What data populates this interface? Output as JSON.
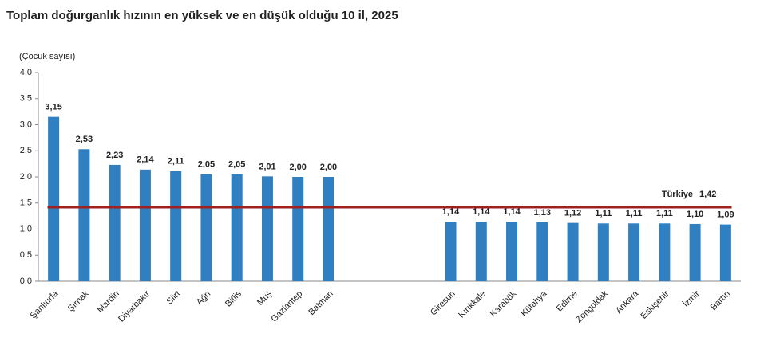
{
  "chart_data": {
    "type": "bar",
    "title": "Toplam doğurganlık hızının en yüksek ve en düşük olduğu 10 il, 2025",
    "y_label": "(Çocuk sayısı)",
    "categories": [
      "Şanlıurfa",
      "Şırnak",
      "Mardin",
      "Diyarbakır",
      "Siirt",
      "Ağrı",
      "Bitlis",
      "Muş",
      "Gaziantep",
      "Batman",
      null,
      null,
      null,
      "Giresun",
      "Kırıkkale",
      "Karabük",
      "Kütahya",
      "Edirne",
      "Zonguldak",
      "Ankara",
      "Eskişehir",
      "İzmir",
      "Bartın"
    ],
    "values": [
      3.15,
      2.53,
      2.23,
      2.14,
      2.11,
      2.05,
      2.05,
      2.01,
      2.0,
      2.0,
      null,
      null,
      null,
      1.14,
      1.14,
      1.14,
      1.13,
      1.12,
      1.11,
      1.11,
      1.11,
      1.1,
      1.09
    ],
    "value_labels": [
      "3,15",
      "2,53",
      "2,23",
      "2,14",
      "2,11",
      "2,05",
      "2,05",
      "2,01",
      "2,00",
      "2,00",
      null,
      null,
      null,
      "1,14",
      "1,14",
      "1,14",
      "1,13",
      "1,12",
      "1,11",
      "1,11",
      "1,11",
      "1,10",
      "1,09"
    ],
    "color": "#2f7fc1",
    "ylim": [
      0,
      4
    ],
    "yticks": [
      {
        "value": 0,
        "label": "0,0"
      },
      {
        "value": 0.5,
        "label": "0,5"
      },
      {
        "value": 1,
        "label": "1,0"
      },
      {
        "value": 1.5,
        "label": "1,5"
      },
      {
        "value": 2,
        "label": "2,0"
      },
      {
        "value": 2.5,
        "label": "2,5"
      },
      {
        "value": 3,
        "label": "3,0"
      },
      {
        "value": 3.5,
        "label": "3,5"
      },
      {
        "value": 4,
        "label": "4,0"
      }
    ],
    "reference_line": {
      "name": "Türkiye",
      "value": 1.42,
      "value_label": "1,42",
      "color": "#a0201f"
    }
  }
}
